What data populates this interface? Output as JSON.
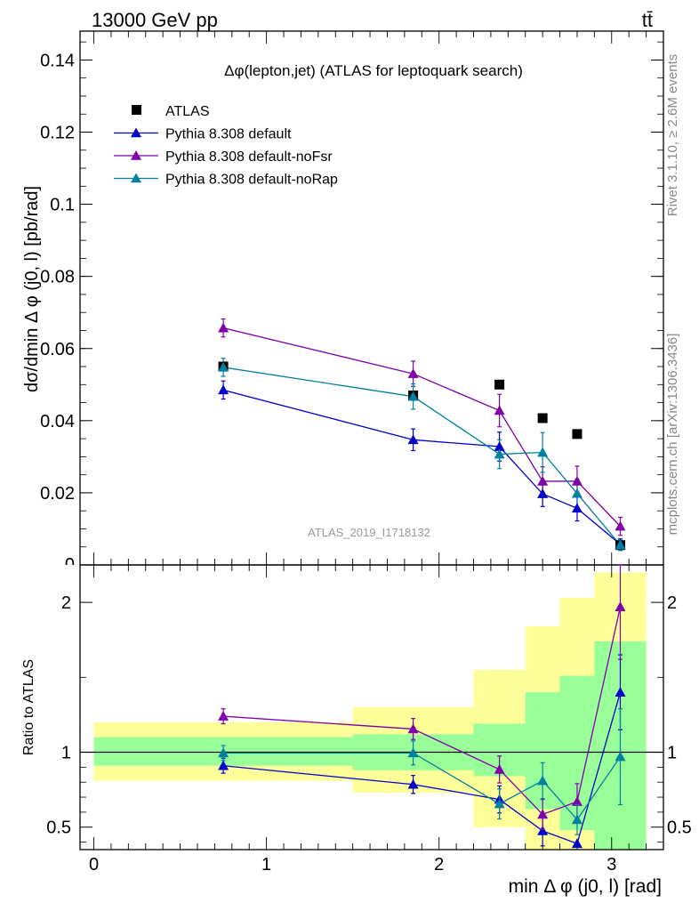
{
  "header": {
    "left": "13000 GeV pp",
    "right": "tt̄"
  },
  "side_labels": {
    "rivet": "Rivet 3.1.10, ≥ 2.6M events",
    "mcplots": "mcplots.cern.ch [arXiv:1306.3436]"
  },
  "chart_data": [
    {
      "type": "scatter",
      "title": "Δφ(lepton,jet) (ATLAS for leptoquark search)",
      "watermark": "ATLAS_2019_I1718132",
      "ylabel": "dσ/dmin Δ φ (j0, l) [pb/rad]",
      "xlim": [
        -0.08,
        3.3
      ],
      "ylim": [
        0,
        0.148
      ],
      "y_ticks": [
        0.02,
        0.04,
        0.06,
        0.08,
        0.1,
        0.12,
        0.14
      ],
      "y_tick_labels": [
        "0.02",
        "0.04",
        "0.06",
        "0.08",
        "0.1",
        "0.12",
        "0.14"
      ],
      "legend": "top-left",
      "series": [
        {
          "name": "ATLAS",
          "color": "#000000",
          "marker": "square",
          "x": [
            0.75,
            1.85,
            2.35,
            2.6,
            2.8,
            3.05
          ],
          "y": [
            0.055,
            0.047,
            0.05,
            0.0407,
            0.0363,
            0.0055
          ]
        },
        {
          "name": "Pythia 8.308 default",
          "color": "#0000cc",
          "marker": "triangle",
          "x": [
            0.75,
            1.85,
            2.35,
            2.6,
            2.8,
            3.05
          ],
          "y": [
            0.0485,
            0.0347,
            0.0328,
            0.0197,
            0.0157,
            0.0057
          ],
          "err": [
            0.0025,
            0.003,
            0.004,
            0.0035,
            0.0035,
            0.0015
          ]
        },
        {
          "name": "Pythia 8.308 default-noFsr",
          "color": "#8000aa",
          "marker": "triangle",
          "x": [
            0.75,
            1.85,
            2.35,
            2.6,
            2.8,
            3.05
          ],
          "y": [
            0.0657,
            0.053,
            0.0428,
            0.0232,
            0.0232,
            0.0107
          ],
          "err": [
            0.0025,
            0.0035,
            0.0045,
            0.004,
            0.0042,
            0.0025
          ]
        },
        {
          "name": "Pythia 8.308 default-noRap",
          "color": "#0080a0",
          "marker": "triangle",
          "x": [
            0.75,
            1.85,
            2.35,
            2.6,
            2.8,
            3.05
          ],
          "y": [
            0.0548,
            0.0467,
            0.0307,
            0.0312,
            0.0198,
            0.0055
          ],
          "err": [
            0.0025,
            0.0035,
            0.004,
            0.0055,
            0.004,
            0.0015
          ]
        }
      ]
    },
    {
      "type": "scatter",
      "ylabel": "Ratio to ATLAS",
      "xlabel": "min Δ φ (j0, l) [rad]",
      "xlim": [
        -0.08,
        3.3
      ],
      "ylim": [
        0.35,
        2.25
      ],
      "x_ticks": [
        0,
        1,
        2,
        3
      ],
      "x_tick_labels": [
        "0",
        "1",
        "2",
        "3"
      ],
      "y_ticks": [
        0.5,
        1,
        2
      ],
      "y_tick_labels": [
        "0.5",
        "1",
        "2"
      ],
      "bands": {
        "bins": [
          [
            0,
            1.5
          ],
          [
            1.5,
            2.2
          ],
          [
            2.2,
            2.5
          ],
          [
            2.5,
            2.7
          ],
          [
            2.7,
            2.9
          ],
          [
            2.9,
            3.2
          ]
        ],
        "inner_lo": [
          0.91,
          0.88,
          0.84,
          0.62,
          0.48,
          0.35
        ],
        "inner_hi": [
          1.1,
          1.12,
          1.19,
          1.4,
          1.51,
          1.74
        ],
        "outer_lo": [
          0.81,
          0.73,
          0.5,
          0.35,
          0.35,
          0.35
        ],
        "outer_hi": [
          1.2,
          1.3,
          1.55,
          1.84,
          2.03,
          2.2
        ],
        "inner_color": "#99ff99",
        "outer_color": "#ffff99"
      },
      "series": [
        {
          "name": "Pythia 8.308 default",
          "color": "#0000cc",
          "x": [
            0.75,
            1.85,
            2.35,
            2.6,
            2.8,
            3.05
          ],
          "y": [
            0.91,
            0.785,
            0.685,
            0.475,
            0.39,
            1.4
          ],
          "err": [
            0.05,
            0.06,
            0.09,
            0.1,
            0.0,
            0.25
          ]
        },
        {
          "name": "Pythia 8.308 default-noFsr",
          "color": "#8000aa",
          "x": [
            0.75,
            1.85,
            2.35,
            2.6,
            2.8,
            3.05
          ],
          "y": [
            1.24,
            1.155,
            0.885,
            0.585,
            0.67,
            1.97
          ],
          "err": [
            0.05,
            0.07,
            0.09,
            0.1,
            0.12,
            0.35
          ]
        },
        {
          "name": "Pythia 8.308 default-noRap",
          "color": "#0080a0",
          "x": [
            0.75,
            1.85,
            2.35,
            2.6,
            2.8,
            3.05
          ],
          "y": [
            0.995,
            0.995,
            0.655,
            0.81,
            0.55,
            0.97
          ],
          "err": [
            0.05,
            0.08,
            0.1,
            0.12,
            0.1,
            0.32
          ]
        }
      ]
    }
  ]
}
